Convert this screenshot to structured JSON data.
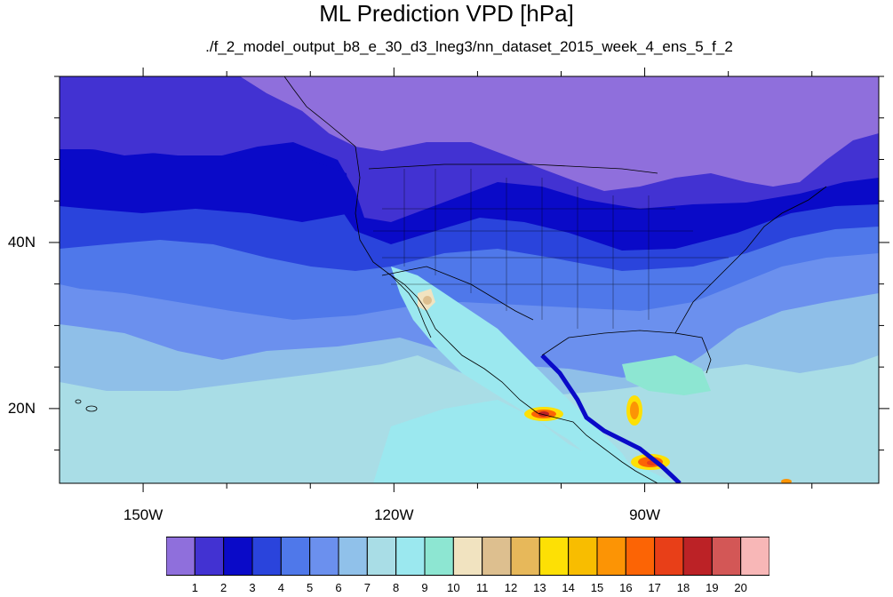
{
  "figure": {
    "title": "ML Prediction VPD [hPa]",
    "subtitle": "./f_2_model_output_b8_e_30_d3_lneg3/nn_dataset_2015_week_4_ens_5_f_2"
  },
  "map": {
    "projection": "cylindrical-equidistant",
    "lon_range": [
      -160,
      -62
    ],
    "lat_range": [
      11,
      60
    ],
    "lon_labels": [
      {
        "lon": -150,
        "text": "150W"
      },
      {
        "lon": -120,
        "text": "120W"
      },
      {
        "lon": -90,
        "text": "90W"
      }
    ],
    "lat_labels": [
      {
        "lat": 40,
        "text": "40N"
      },
      {
        "lat": 20,
        "text": "20N"
      }
    ],
    "ocean_base_color": "#8fbfe8",
    "land_outline_color": "#000000"
  },
  "colorbar": {
    "labels": [
      "1",
      "2",
      "3",
      "4",
      "5",
      "6",
      "7",
      "8",
      "9",
      "10",
      "11",
      "12",
      "13",
      "14",
      "15",
      "16",
      "17",
      "18",
      "19",
      "20"
    ],
    "colors": [
      "#8f6fdc",
      "#4232d2",
      "#0a0ac8",
      "#2a44dc",
      "#4f78ea",
      "#6b90ee",
      "#90c1ea",
      "#a9dde6",
      "#9be8ef",
      "#8de6d2",
      "#f1e3c0",
      "#ddbf8f",
      "#e7b85a",
      "#fde005",
      "#f8bd00",
      "#fc9405",
      "#fc6405",
      "#e83f18",
      "#bc2226",
      "#d35756",
      "#f8b7b7"
    ]
  }
}
